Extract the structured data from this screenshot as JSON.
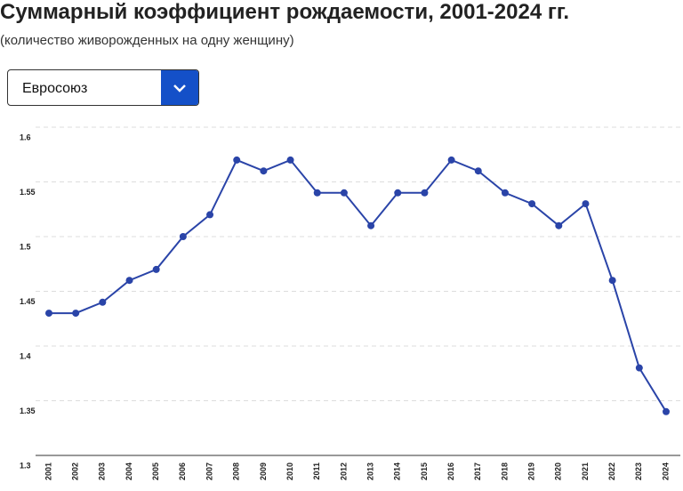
{
  "chart_data": {
    "type": "line",
    "title": "Суммарный коэффициент рождаемости, 2001-2024 гг.",
    "subtitle": "(количество живорожденных на одну женщину)",
    "categories": [
      "2001",
      "2002",
      "2003",
      "2004",
      "2005",
      "2006",
      "2007",
      "2008",
      "2009",
      "2010",
      "2011",
      "2012",
      "2013",
      "2014",
      "2015",
      "2016",
      "2017",
      "2018",
      "2019",
      "2020",
      "2021",
      "2022",
      "2023",
      "2024"
    ],
    "series": [
      {
        "name": "Евросоюз",
        "color": "#2a44a8",
        "values": [
          1.43,
          1.43,
          1.44,
          1.46,
          1.47,
          1.5,
          1.52,
          1.57,
          1.56,
          1.57,
          1.54,
          1.54,
          1.51,
          1.54,
          1.54,
          1.57,
          1.56,
          1.54,
          1.53,
          1.51,
          1.53,
          1.46,
          1.38,
          1.34
        ]
      }
    ],
    "ylim": [
      1.3,
      1.6
    ],
    "yticks": [
      1.3,
      1.35,
      1.4,
      1.45,
      1.5,
      1.55,
      1.6
    ],
    "grid": true
  },
  "dropdown": {
    "selected": "Евросоюз"
  }
}
